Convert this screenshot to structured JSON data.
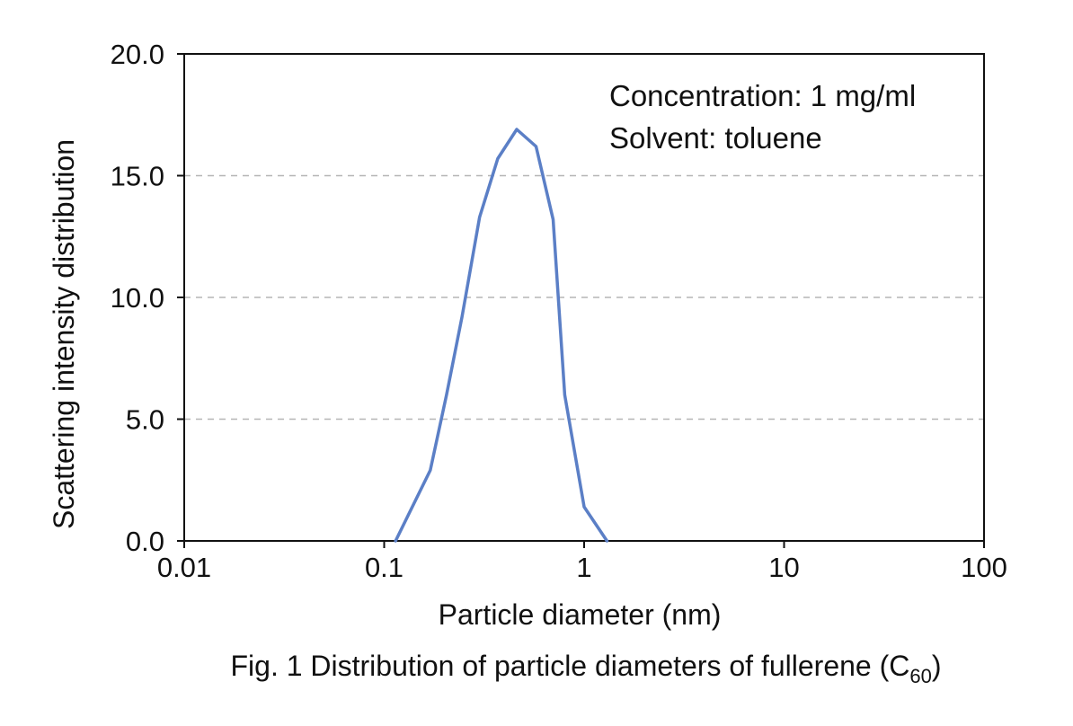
{
  "chart_data": {
    "type": "line",
    "xlabel": "Particle diameter (nm)",
    "ylabel": "Scattering intensity distribution",
    "x_scale": "log",
    "xlim": [
      0.01,
      100
    ],
    "ylim": [
      0,
      20
    ],
    "x_ticks": [
      "0.01",
      "0.1",
      "1",
      "10",
      "100"
    ],
    "y_ticks": [
      "0.0",
      "5.0",
      "10.0",
      "15.0",
      "20.0"
    ],
    "grid": "horizontal dashed",
    "annotations": [
      "Concentration: 1 mg/ml",
      "Solvent: toluene"
    ],
    "caption": {
      "text": "Fig. 1 Distribution of particle diameters of fullerene (C",
      "subscript": "60",
      "suffix": ")"
    },
    "series": [
      {
        "color": "#5b7fc6",
        "points": [
          {
            "x": 0.114,
            "y": 0.0
          },
          {
            "x": 0.17,
            "y": 2.9
          },
          {
            "x": 0.205,
            "y": 6.0
          },
          {
            "x": 0.245,
            "y": 9.2
          },
          {
            "x": 0.3,
            "y": 13.3
          },
          {
            "x": 0.37,
            "y": 15.7
          },
          {
            "x": 0.46,
            "y": 16.9
          },
          {
            "x": 0.575,
            "y": 16.2
          },
          {
            "x": 0.7,
            "y": 13.2
          },
          {
            "x": 0.8,
            "y": 6.0
          },
          {
            "x": 1.0,
            "y": 1.4
          },
          {
            "x": 1.3,
            "y": 0.0
          }
        ]
      }
    ]
  }
}
